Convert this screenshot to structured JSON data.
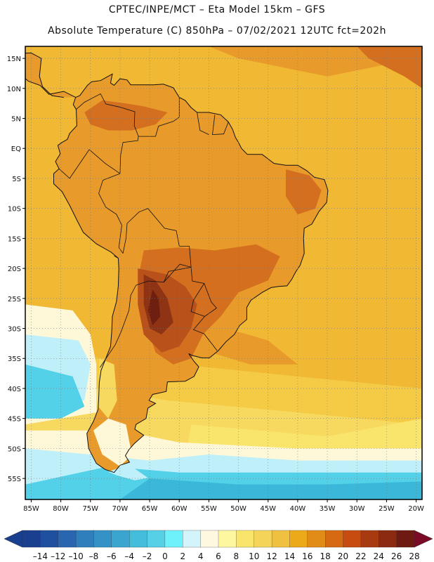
{
  "title": {
    "line1": "CPTEC/INPE/MCT –  Eta Model 15km – GFS",
    "line2": "Absolute Temperature (C) 850hPa – 07/02/2021 12UTC fct=202h"
  },
  "map": {
    "lon_range": [
      -86,
      -19
    ],
    "lat_range": [
      -58.5,
      17
    ],
    "lat_ticks": [
      {
        "value": 15,
        "label": "15N"
      },
      {
        "value": 10,
        "label": "10N"
      },
      {
        "value": 5,
        "label": "5N"
      },
      {
        "value": 0,
        "label": "EQ"
      },
      {
        "value": -5,
        "label": "5S"
      },
      {
        "value": -10,
        "label": "10S"
      },
      {
        "value": -15,
        "label": "15S"
      },
      {
        "value": -20,
        "label": "20S"
      },
      {
        "value": -25,
        "label": "25S"
      },
      {
        "value": -30,
        "label": "30S"
      },
      {
        "value": -35,
        "label": "35S"
      },
      {
        "value": -40,
        "label": "40S"
      },
      {
        "value": -45,
        "label": "45S"
      },
      {
        "value": -50,
        "label": "50S"
      },
      {
        "value": -55,
        "label": "55S"
      }
    ],
    "lon_ticks": [
      {
        "value": -85,
        "label": "85W"
      },
      {
        "value": -80,
        "label": "80W"
      },
      {
        "value": -75,
        "label": "75W"
      },
      {
        "value": -70,
        "label": "70W"
      },
      {
        "value": -65,
        "label": "65W"
      },
      {
        "value": -60,
        "label": "60W"
      },
      {
        "value": -55,
        "label": "55W"
      },
      {
        "value": -50,
        "label": "50W"
      },
      {
        "value": -45,
        "label": "45W"
      },
      {
        "value": -40,
        "label": "40W"
      },
      {
        "value": -35,
        "label": "35W"
      },
      {
        "value": -30,
        "label": "30W"
      },
      {
        "value": -25,
        "label": "25W"
      },
      {
        "value": -20,
        "label": "20W"
      }
    ],
    "colors": {
      "t18": "#f0b833",
      "t20": "#e89a2a",
      "t22": "#d36f1e",
      "t24": "#b8521a",
      "t26": "#8e3414",
      "t28": "#6e1f10",
      "t16": "#f5cb45",
      "t14": "#f7d95f",
      "t12": "#fae56c",
      "t10": "#fcf29c",
      "t8": "#fff8d8",
      "t6": "#e6f7fb",
      "t4": "#bff0fa",
      "t2": "#70e9f8",
      "t0": "#52d1e8",
      "tm2": "#3bb8d9"
    }
  },
  "colorbar": {
    "colors": [
      "#1a3f8f",
      "#1f4f9f",
      "#2a66b0",
      "#2f7fbd",
      "#3592c6",
      "#3aa6d0",
      "#44bddc",
      "#55d0e6",
      "#6ff1fb",
      "#d4f4fb",
      "#fff8e1",
      "#fdf7a0",
      "#f9e56a",
      "#f5d45a",
      "#f0c040",
      "#ecaa1a",
      "#e18b18",
      "#d66a12",
      "#c64c10",
      "#a83a10",
      "#8b2a10",
      "#6e1a12"
    ],
    "labels": [
      "–14",
      "–12",
      "–10",
      "–8",
      "–6",
      "–4",
      "–2",
      "0",
      "2",
      "4",
      "6",
      "8",
      "10",
      "12",
      "14",
      "16",
      "18",
      "20",
      "22",
      "24",
      "26",
      "28"
    ]
  }
}
